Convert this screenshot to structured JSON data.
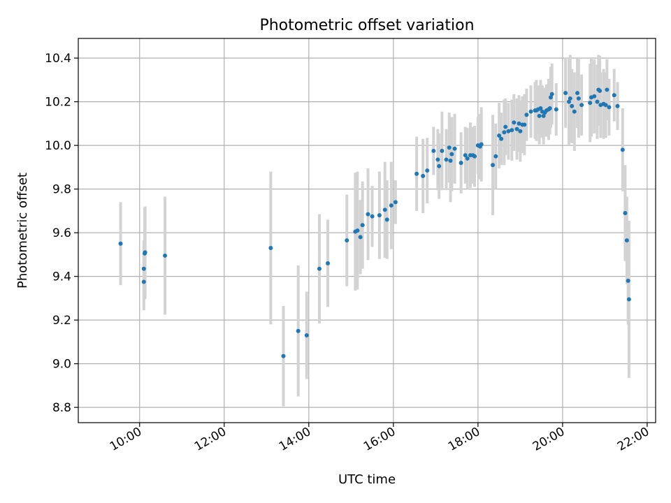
{
  "chart_data": {
    "type": "scatter",
    "title": "Photometric offset variation",
    "xlabel": "UTC time",
    "ylabel": "Photometric offset",
    "xlim": [
      8.55,
      22.2
    ],
    "ylim": [
      8.73,
      10.49
    ],
    "grid": true,
    "x_ticks": [
      10,
      12,
      14,
      16,
      18,
      20,
      22
    ],
    "x_tick_labels": [
      "10:00",
      "12:00",
      "14:00",
      "16:00",
      "18:00",
      "20:00",
      "22:00"
    ],
    "y_ticks": [
      8.8,
      9.0,
      9.2,
      9.4,
      9.6,
      9.8,
      10.0,
      10.2,
      10.4
    ],
    "y_tick_labels": [
      "8.8",
      "9.0",
      "9.2",
      "9.4",
      "9.6",
      "9.8",
      "10.0",
      "10.2",
      "10.4"
    ],
    "series": [
      {
        "name": "Photometric offset",
        "x": [
          9.55,
          10.1,
          10.1,
          10.12,
          10.13,
          10.6,
          13.1,
          13.4,
          13.75,
          13.95,
          14.25,
          14.45,
          14.9,
          15.1,
          15.15,
          15.22,
          15.27,
          15.4,
          15.5,
          15.67,
          15.8,
          15.85,
          15.95,
          16.05,
          16.55,
          16.7,
          16.8,
          16.95,
          17.05,
          17.08,
          17.15,
          17.25,
          17.32,
          17.35,
          17.38,
          17.45,
          17.6,
          17.7,
          17.75,
          17.82,
          17.88,
          17.92,
          18.0,
          18.05,
          18.08,
          18.35,
          18.42,
          18.5,
          18.55,
          18.62,
          18.65,
          18.72,
          18.8,
          18.85,
          18.92,
          18.97,
          19.0,
          19.05,
          19.1,
          19.15,
          19.25,
          19.35,
          19.38,
          19.42,
          19.45,
          19.48,
          19.52,
          19.55,
          19.58,
          19.62,
          19.67,
          19.7,
          19.72,
          19.75,
          19.85,
          20.07,
          20.15,
          20.18,
          20.22,
          20.28,
          20.35,
          20.38,
          20.45,
          20.65,
          20.68,
          20.75,
          20.82,
          20.85,
          20.88,
          20.9,
          20.97,
          21.02,
          21.05,
          21.1,
          21.22,
          21.3,
          21.42,
          21.48,
          21.52,
          21.55,
          21.57
        ],
        "y": [
          9.55,
          9.435,
          9.375,
          9.505,
          9.51,
          9.495,
          9.53,
          9.035,
          9.15,
          9.13,
          9.435,
          9.46,
          9.565,
          9.605,
          9.61,
          9.58,
          9.635,
          9.685,
          9.675,
          9.68,
          9.705,
          9.66,
          9.725,
          9.74,
          9.87,
          9.86,
          9.885,
          9.975,
          9.935,
          9.905,
          9.975,
          9.935,
          9.99,
          9.93,
          9.96,
          9.985,
          9.92,
          9.955,
          9.94,
          9.955,
          9.955,
          9.95,
          10.0,
          9.995,
          10.005,
          9.91,
          9.95,
          10.045,
          10.03,
          10.06,
          10.085,
          10.065,
          10.07,
          10.105,
          10.075,
          10.1,
          10.065,
          10.095,
          10.095,
          10.14,
          10.155,
          10.16,
          10.16,
          10.165,
          10.135,
          10.17,
          10.155,
          10.135,
          10.15,
          10.16,
          10.165,
          10.17,
          10.22,
          10.235,
          10.165,
          10.24,
          10.2,
          10.215,
          10.18,
          10.155,
          10.24,
          10.215,
          10.185,
          10.195,
          10.22,
          10.225,
          10.2,
          10.255,
          10.25,
          10.185,
          10.19,
          10.185,
          10.255,
          10.175,
          10.23,
          10.18,
          9.98,
          9.69,
          9.565,
          9.38,
          9.295
        ],
        "yerr": [
          0.19,
          0.13,
          0.13,
          0.21,
          0.21,
          0.27,
          0.35,
          0.23,
          0.3,
          0.2,
          0.25,
          0.2,
          0.21,
          0.27,
          0.27,
          0.17,
          0.2,
          0.21,
          0.14,
          0.2,
          0.22,
          0.18,
          0.2,
          0.1,
          0.17,
          0.17,
          0.15,
          0.11,
          0.14,
          0.15,
          0.18,
          0.14,
          0.16,
          0.19,
          0.17,
          0.16,
          0.14,
          0.13,
          0.14,
          0.15,
          0.13,
          0.14,
          0.13,
          0.15,
          0.17,
          0.23,
          0.15,
          0.15,
          0.12,
          0.15,
          0.13,
          0.13,
          0.14,
          0.13,
          0.14,
          0.13,
          0.14,
          0.13,
          0.14,
          0.12,
          0.12,
          0.13,
          0.14,
          0.11,
          0.13,
          0.13,
          0.12,
          0.13,
          0.11,
          0.12,
          0.14,
          0.12,
          0.14,
          0.14,
          0.12,
          0.16,
          0.2,
          0.2,
          0.17,
          0.18,
          0.16,
          0.18,
          0.14,
          0.18,
          0.18,
          0.17,
          0.17,
          0.16,
          0.16,
          0.15,
          0.16,
          0.15,
          0.14,
          0.13,
          0.12,
          0.11,
          0.19,
          0.22,
          0.2,
          0.2,
          0.36
        ]
      }
    ]
  }
}
